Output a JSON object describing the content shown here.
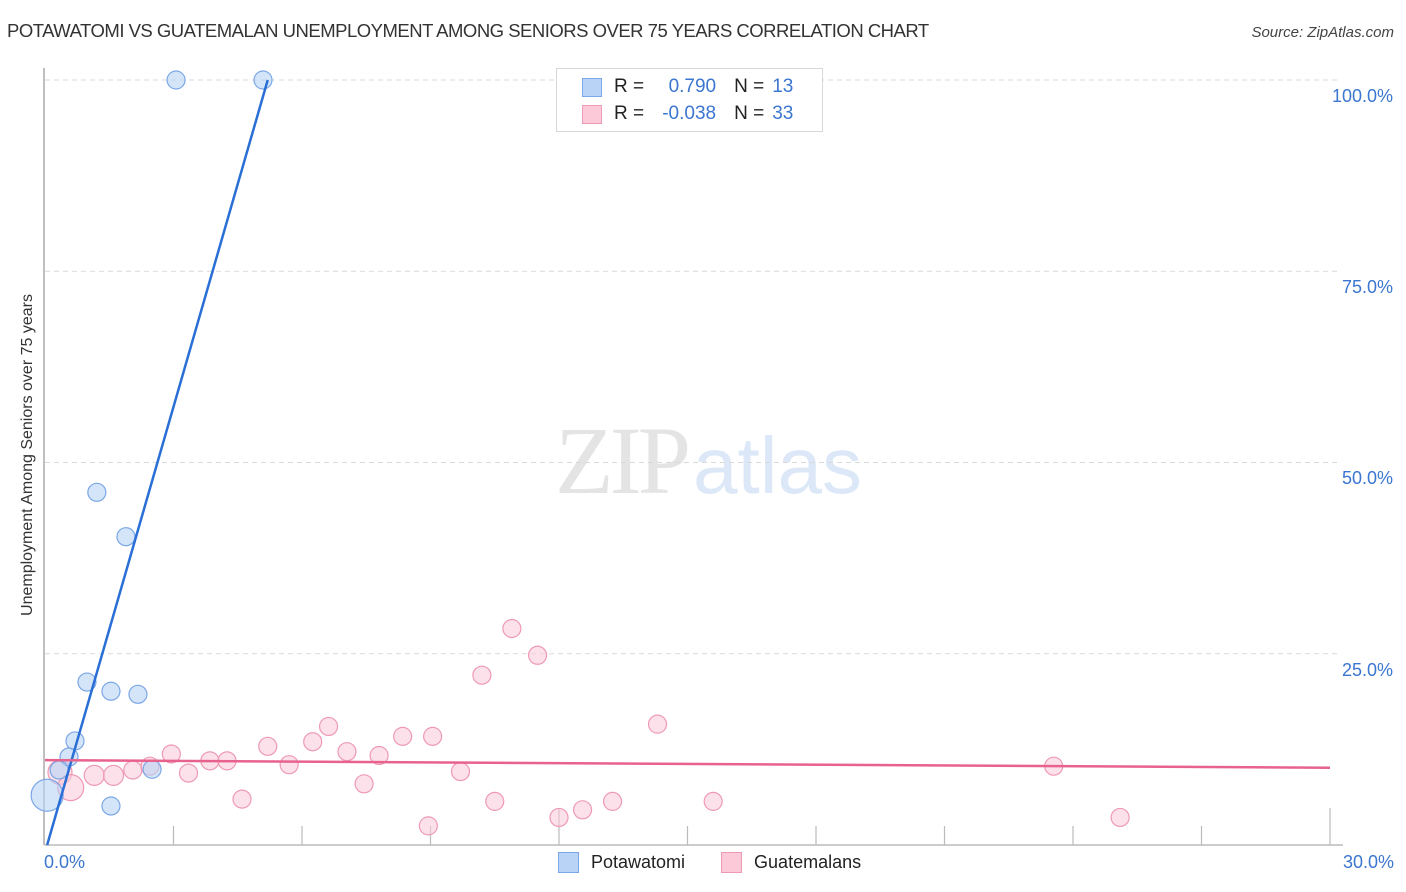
{
  "header": {
    "title": "POTAWATOMI VS GUATEMALAN UNEMPLOYMENT AMONG SENIORS OVER 75 YEARS CORRELATION CHART",
    "source": "Source: ZipAtlas.com"
  },
  "watermark": {
    "zip": "ZIP",
    "atlas": "atlas"
  },
  "legend_stats": [
    {
      "r_label": "R =",
      "r_value": "0.790",
      "n_label": "N =",
      "n_value": "13",
      "color": "#b8d3f5",
      "border": "#7ba7e6"
    },
    {
      "r_label": "R =",
      "r_value": "-0.038",
      "n_label": "N =",
      "n_value": "33",
      "color": "#fbc9d8",
      "border": "#ee9ab4"
    }
  ],
  "axes": {
    "ylabel": "Unemployment Among Seniors over 75 years",
    "yticks": [
      "100.0%",
      "75.0%",
      "50.0%",
      "25.0%"
    ],
    "xtick_left": "0.0%",
    "xtick_right": "30.0%"
  },
  "bottom_legend": [
    {
      "label": "Potawatomi",
      "color": "#b8d3f5",
      "border": "#7ba7e6"
    },
    {
      "label": "Guatemalans",
      "color": "#fbc9d8",
      "border": "#ee9ab4"
    }
  ],
  "chart_data": {
    "type": "scatter",
    "title": "POTAWATOMI VS GUATEMALAN UNEMPLOYMENT AMONG SENIORS OVER 75 YEARS CORRELATION CHART",
    "xlabel": "",
    "ylabel": "Unemployment Among Seniors over 75 years",
    "xlim": [
      0,
      30
    ],
    "ylim": [
      0,
      100
    ],
    "x_tick_labels": [
      "0.0%",
      "30.0%"
    ],
    "y_tick_labels": [
      "25.0%",
      "50.0%",
      "75.0%",
      "100.0%"
    ],
    "grid": "horizontal dashed",
    "legend_position": "bottom-center",
    "series": [
      {
        "name": "Potawatomi",
        "color": "#7ba7e6",
        "R": 0.79,
        "N": 13,
        "points": [
          {
            "x": 3.06,
            "y": 100.0,
            "r": 9
          },
          {
            "x": 5.09,
            "y": 100.0,
            "r": 9
          },
          {
            "x": 1.21,
            "y": 46.1,
            "r": 9
          },
          {
            "x": 1.89,
            "y": 40.3,
            "r": 9
          },
          {
            "x": 0.98,
            "y": 21.3,
            "r": 9
          },
          {
            "x": 1.54,
            "y": 20.1,
            "r": 9
          },
          {
            "x": 2.17,
            "y": 19.7,
            "r": 9
          },
          {
            "x": 0.7,
            "y": 13.6,
            "r": 9
          },
          {
            "x": 0.56,
            "y": 11.5,
            "r": 9
          },
          {
            "x": 0.33,
            "y": 9.8,
            "r": 9
          },
          {
            "x": 2.5,
            "y": 9.9,
            "r": 9
          },
          {
            "x": 1.54,
            "y": 5.1,
            "r": 9
          },
          {
            "x": 0.05,
            "y": 6.5,
            "r": 16
          }
        ],
        "trendline": {
          "x1": 0.05,
          "y1": 0.0,
          "x2": 5.2,
          "y2": 100.0
        }
      },
      {
        "name": "Guatemalans",
        "color": "#ee9ab4",
        "R": -0.038,
        "N": 33,
        "points": [
          {
            "x": 0.35,
            "y": 9.5,
            "r": 12
          },
          {
            "x": 0.6,
            "y": 7.5,
            "r": 13
          },
          {
            "x": 1.15,
            "y": 9.1,
            "r": 10
          },
          {
            "x": 1.6,
            "y": 9.1,
            "r": 10
          },
          {
            "x": 2.05,
            "y": 9.8,
            "r": 9
          },
          {
            "x": 2.45,
            "y": 10.3,
            "r": 9
          },
          {
            "x": 2.95,
            "y": 11.9,
            "r": 9
          },
          {
            "x": 3.35,
            "y": 9.4,
            "r": 9
          },
          {
            "x": 3.85,
            "y": 11.0,
            "r": 9
          },
          {
            "x": 4.25,
            "y": 11.0,
            "r": 9
          },
          {
            "x": 4.6,
            "y": 6.0,
            "r": 9
          },
          {
            "x": 5.2,
            "y": 12.9,
            "r": 9
          },
          {
            "x": 5.7,
            "y": 10.5,
            "r": 9
          },
          {
            "x": 6.25,
            "y": 13.5,
            "r": 9
          },
          {
            "x": 6.62,
            "y": 15.5,
            "r": 9
          },
          {
            "x": 7.05,
            "y": 12.2,
            "r": 9
          },
          {
            "x": 7.45,
            "y": 8.0,
            "r": 9
          },
          {
            "x": 7.8,
            "y": 11.7,
            "r": 9
          },
          {
            "x": 8.35,
            "y": 14.2,
            "r": 9
          },
          {
            "x": 8.95,
            "y": 2.5,
            "r": 9
          },
          {
            "x": 9.05,
            "y": 14.2,
            "r": 9
          },
          {
            "x": 9.7,
            "y": 9.6,
            "r": 9
          },
          {
            "x": 10.2,
            "y": 22.2,
            "r": 9
          },
          {
            "x": 10.5,
            "y": 5.7,
            "r": 9
          },
          {
            "x": 10.9,
            "y": 28.3,
            "r": 9
          },
          {
            "x": 11.5,
            "y": 24.8,
            "r": 9
          },
          {
            "x": 12.0,
            "y": 3.6,
            "r": 9
          },
          {
            "x": 12.55,
            "y": 4.6,
            "r": 9
          },
          {
            "x": 13.25,
            "y": 5.7,
            "r": 9
          },
          {
            "x": 14.3,
            "y": 15.8,
            "r": 9
          },
          {
            "x": 15.6,
            "y": 5.7,
            "r": 9
          },
          {
            "x": 23.55,
            "y": 10.3,
            "r": 9
          },
          {
            "x": 25.1,
            "y": 3.6,
            "r": 9
          }
        ],
        "trendline": {
          "x1": 0.0,
          "y1": 11.1,
          "x2": 30.0,
          "y2": 10.1
        }
      }
    ]
  }
}
